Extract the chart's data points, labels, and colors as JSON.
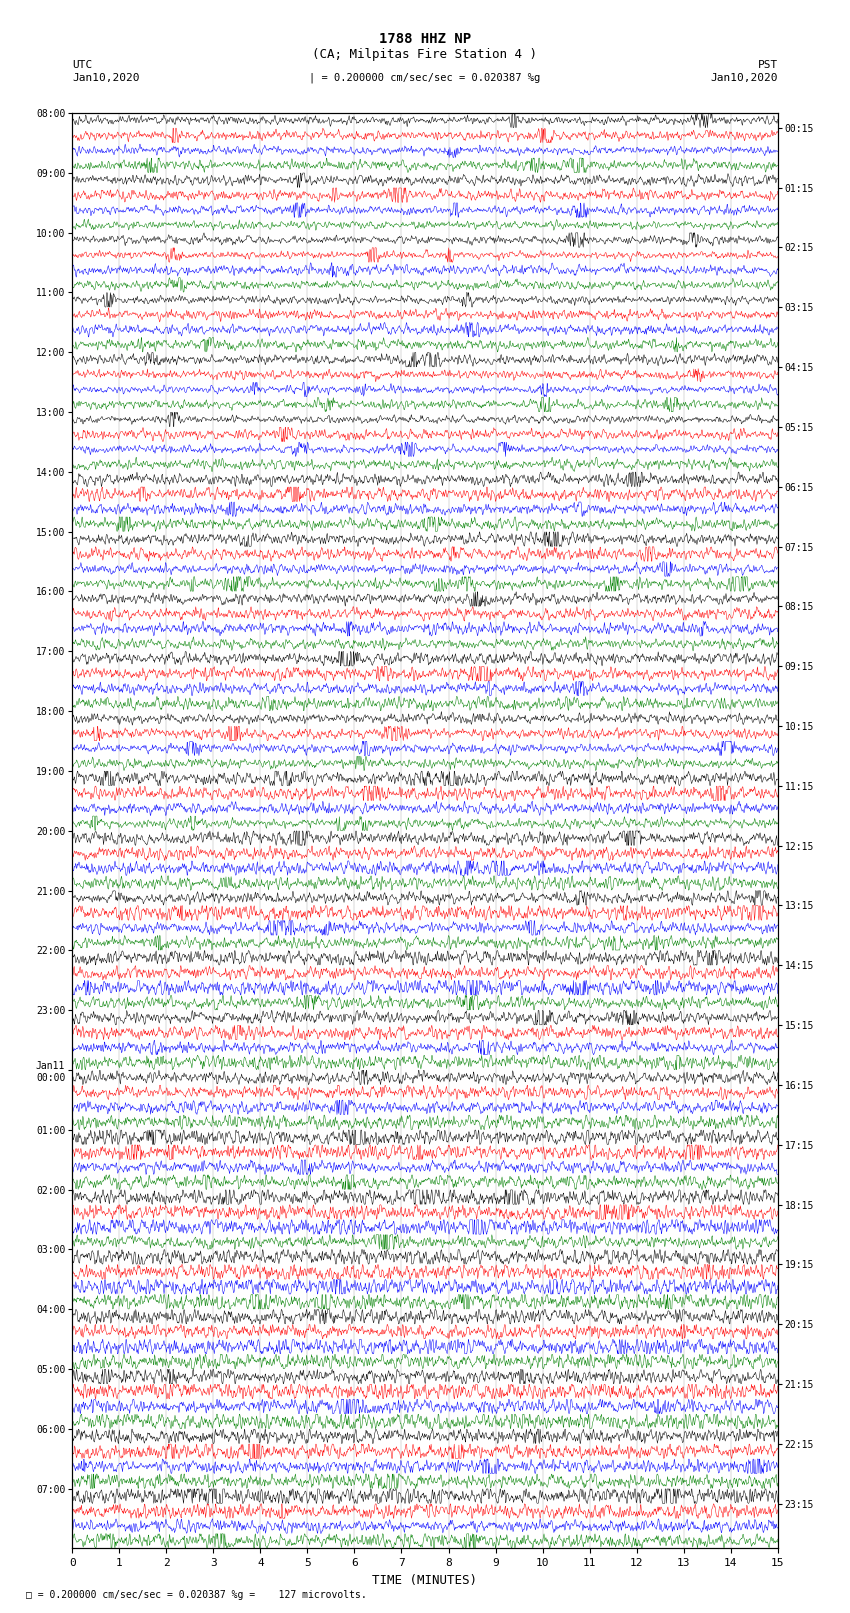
{
  "title_line1": "1788 HHZ NP",
  "title_line2": "(CA; Milpitas Fire Station 4 )",
  "scale_text": "= 0.200000 cm/sec/sec = 0.020387 %g",
  "footer_text": "= 0.200000 cm/sec/sec = 0.020387 %g =    127 microvolts.",
  "utc_label": "UTC",
  "pst_label": "PST",
  "date_left": "Jan10,2020",
  "date_right": "Jan10,2020",
  "xlabel": "TIME (MINUTES)",
  "left_times": [
    "08:00",
    "09:00",
    "10:00",
    "11:00",
    "12:00",
    "13:00",
    "14:00",
    "15:00",
    "16:00",
    "17:00",
    "18:00",
    "19:00",
    "20:00",
    "21:00",
    "22:00",
    "23:00",
    "Jan11\n00:00",
    "01:00",
    "02:00",
    "03:00",
    "04:00",
    "05:00",
    "06:00",
    "07:00"
  ],
  "right_times": [
    "00:15",
    "01:15",
    "02:15",
    "03:15",
    "04:15",
    "05:15",
    "06:15",
    "07:15",
    "08:15",
    "09:15",
    "10:15",
    "11:15",
    "12:15",
    "13:15",
    "14:15",
    "15:15",
    "16:15",
    "17:15",
    "18:15",
    "19:15",
    "20:15",
    "21:15",
    "22:15",
    "23:15"
  ],
  "colors": [
    "black",
    "red",
    "blue",
    "green"
  ],
  "n_rows": 96,
  "figsize": [
    8.5,
    16.13
  ],
  "dpi": 100,
  "background_color": "white",
  "seed": 42
}
